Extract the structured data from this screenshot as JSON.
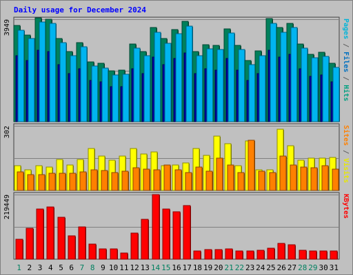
{
  "chart_data": {
    "type": "bar",
    "title": "Daily usage for December 2024",
    "x": [
      "1",
      "2",
      "3",
      "4",
      "5",
      "6",
      "7",
      "8",
      "9",
      "10",
      "11",
      "12",
      "13",
      "14",
      "15",
      "16",
      "17",
      "18",
      "19",
      "20",
      "21",
      "22",
      "23",
      "24",
      "25",
      "26",
      "27",
      "28",
      "29",
      "30",
      "31"
    ],
    "weekend_days": [
      "1",
      "7",
      "8",
      "14",
      "15",
      "21",
      "22",
      "28",
      "29"
    ],
    "panels": [
      {
        "id": "pages-files-hits",
        "axis_max_label": "3949",
        "ymax": 3949,
        "right_label": [
          {
            "text": "Pages",
            "color": "#00b4d8"
          },
          {
            "text": " / ",
            "color": "#606060"
          },
          {
            "text": "Files",
            "color": "#0070c0"
          },
          {
            "text": " / ",
            "color": "#606060"
          },
          {
            "text": "Hits",
            "color": "#00a080"
          }
        ],
        "series": [
          {
            "name": "Hits",
            "color": "#00805a",
            "values": [
              3720,
              3350,
              3990,
              3940,
              3200,
              2700,
              3050,
              2300,
              2250,
              1970,
              1980,
              3000,
              2700,
              3620,
              3200,
              3550,
              3860,
              2700,
              2960,
              2940,
              3580,
              2940,
              2350,
              2720,
              3970,
              3620,
              3790,
              3000,
              2600,
              2680,
              2250
            ]
          },
          {
            "name": "Files",
            "color": "#0000a0",
            "values": [
              2600,
              2400,
              2800,
              2750,
              2250,
              1900,
              2100,
              1650,
              1600,
              1400,
              1400,
              2100,
              1900,
              2550,
              2250,
              2500,
              2700,
              1900,
              2100,
              2050,
              2500,
              2050,
              1650,
              1900,
              2800,
              2550,
              2650,
              2100,
              1800,
              1850,
              1600
            ]
          },
          {
            "name": "Pages",
            "color": "#00b4f0",
            "values": [
              3640,
              3300,
              3940,
              3890,
              3150,
              2650,
              3000,
              2240,
              2180,
              1920,
              1940,
              2950,
              2650,
              3560,
              3140,
              3500,
              3800,
              2650,
              2910,
              2880,
              3520,
              2890,
              2300,
              2660,
              3900,
              3560,
              3740,
              2950,
              2560,
              2620,
              2200
            ]
          }
        ]
      },
      {
        "id": "sites-visits",
        "axis_max_label": "302",
        "ymax": 302,
        "right_label": [
          {
            "text": "Sites",
            "color": "#ff8000"
          },
          {
            "text": " / ",
            "color": "#606060"
          },
          {
            "text": "Visits",
            "color": "#e8e800"
          }
        ],
        "series": [
          {
            "name": "Visits",
            "color": "#ffff00",
            "values": [
              115,
              95,
              115,
              110,
              145,
              120,
              145,
              195,
              160,
              140,
              160,
              195,
              170,
              180,
              115,
              120,
              130,
              195,
              165,
              255,
              220,
              115,
              230,
              95,
              95,
              285,
              210,
              140,
              150,
              150,
              155
            ]
          },
          {
            "name": "Sites",
            "color": "#ff8000",
            "values": [
              88,
              75,
              75,
              80,
              80,
              80,
              88,
              95,
              93,
              85,
              90,
              105,
              100,
              95,
              120,
              95,
              85,
              110,
              90,
              150,
              120,
              85,
              235,
              90,
              85,
              160,
              120,
              110,
              105,
              115,
              100
            ]
          }
        ]
      },
      {
        "id": "kbytes",
        "axis_max_label": "219449",
        "ymax": 219449,
        "right_label": [
          {
            "text": "KBytes",
            "color": "#ff0000"
          }
        ],
        "series": [
          {
            "name": "KBytes",
            "color": "#ff0000",
            "values": [
              67000,
              106000,
              171000,
              178000,
              143000,
              80000,
              109000,
              52000,
              34000,
              34000,
              21000,
              88000,
              136000,
              219449,
              170000,
              162000,
              182000,
              29000,
              32000,
              33000,
              34000,
              29000,
              27000,
              30000,
              37000,
              53000,
              48000,
              30000,
              29000,
              29000,
              28000
            ]
          }
        ]
      }
    ]
  }
}
